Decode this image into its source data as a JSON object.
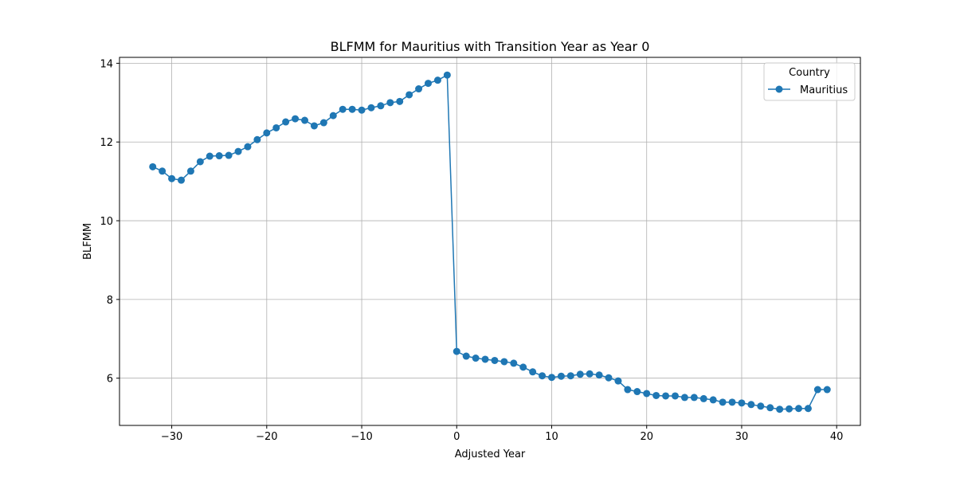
{
  "chart_data": {
    "type": "line",
    "title": "BLFMM for Mauritius with Transition Year as Year 0",
    "xlabel": "Adjusted Year",
    "ylabel": "BLFMM",
    "xlim": [
      -35.5,
      42.5
    ],
    "ylim": [
      4.8,
      14.15
    ],
    "x_ticks": [
      -30,
      -20,
      -10,
      0,
      10,
      20,
      30,
      40
    ],
    "x_tick_labels": [
      "−30",
      "−20",
      "−10",
      "0",
      "10",
      "20",
      "30",
      "40"
    ],
    "y_ticks": [
      6,
      8,
      10,
      12,
      14
    ],
    "y_tick_labels": [
      "6",
      "8",
      "10",
      "12",
      "14"
    ],
    "grid": true,
    "legend": {
      "title": "Country",
      "placement": "top-right"
    },
    "color": "#1f77b4",
    "series": [
      {
        "name": "Mauritius",
        "x": [
          -32,
          -31,
          -30,
          -29,
          -28,
          -27,
          -26,
          -25,
          -24,
          -23,
          -22,
          -21,
          -20,
          -19,
          -18,
          -17,
          -16,
          -15,
          -14,
          -13,
          -12,
          -11,
          -10,
          -9,
          -8,
          -7,
          -6,
          -5,
          -4,
          -3,
          -2,
          -1,
          0,
          1,
          2,
          3,
          4,
          5,
          6,
          7,
          8,
          9,
          10,
          11,
          12,
          13,
          14,
          15,
          16,
          17,
          18,
          19,
          20,
          21,
          22,
          23,
          24,
          25,
          26,
          27,
          28,
          29,
          30,
          31,
          32,
          33,
          34,
          35,
          36,
          37,
          38,
          39
        ],
        "y": [
          11.37,
          11.26,
          11.07,
          11.03,
          11.26,
          11.5,
          11.64,
          11.65,
          11.66,
          11.76,
          11.88,
          12.06,
          12.23,
          12.36,
          12.51,
          12.59,
          12.55,
          12.41,
          12.49,
          12.67,
          12.83,
          12.83,
          12.81,
          12.87,
          12.92,
          13.0,
          13.03,
          13.2,
          13.35,
          13.49,
          13.57,
          13.7,
          6.68,
          6.56,
          6.51,
          6.48,
          6.45,
          6.42,
          6.38,
          6.28,
          6.16,
          6.06,
          6.02,
          6.05,
          6.06,
          6.1,
          6.11,
          6.08,
          6.01,
          5.93,
          5.71,
          5.66,
          5.61,
          5.56,
          5.55,
          5.55,
          5.51,
          5.51,
          5.48,
          5.45,
          5.39,
          5.39,
          5.37,
          5.33,
          5.29,
          5.25,
          5.21,
          5.22,
          5.23,
          5.23,
          5.71,
          5.71
        ]
      }
    ]
  }
}
